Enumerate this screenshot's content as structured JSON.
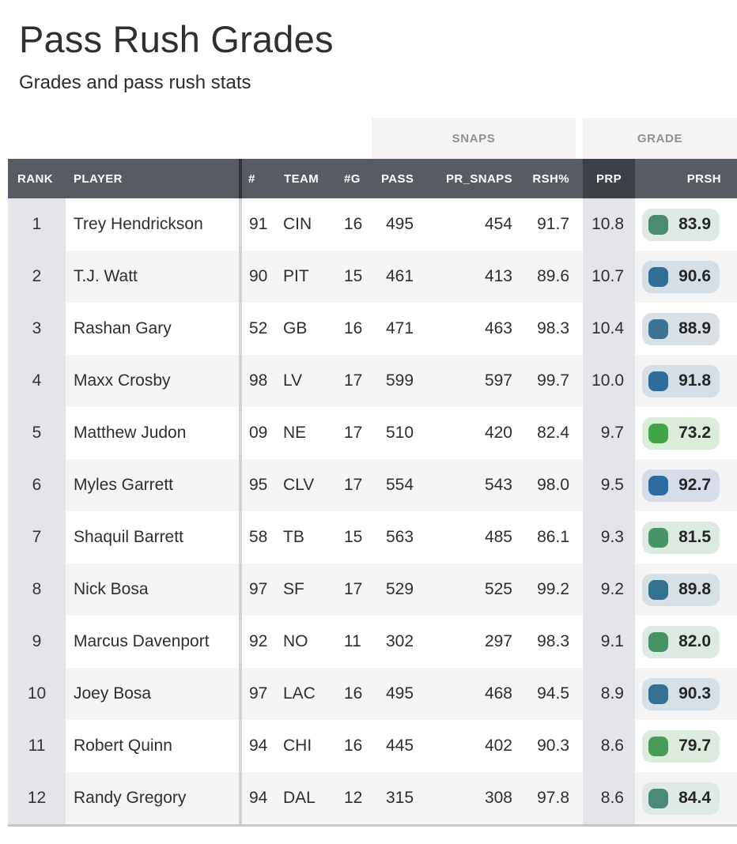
{
  "page": {
    "title": "Pass Rush Grades",
    "subtitle": "Grades and pass rush stats"
  },
  "table": {
    "groups": [
      {
        "label": "SNAPS"
      },
      {
        "label": "GRADE"
      }
    ],
    "columns": [
      {
        "key": "rank",
        "label": "RANK"
      },
      {
        "key": "player",
        "label": "PLAYER"
      },
      {
        "key": "num",
        "label": "#"
      },
      {
        "key": "team",
        "label": "TEAM"
      },
      {
        "key": "games",
        "label": "#G"
      },
      {
        "key": "pass",
        "label": "PASS"
      },
      {
        "key": "pr_snaps",
        "label": "PR_SNAPS"
      },
      {
        "key": "rsh_pct",
        "label": "RSH%"
      },
      {
        "key": "prp",
        "label": "PRP"
      },
      {
        "key": "prsh",
        "label": "PRSH"
      }
    ],
    "rows": [
      {
        "rank": "1",
        "player": "Trey Hendrickson",
        "num": "91",
        "team": "CIN",
        "games": "16",
        "pass": "495",
        "pr_snaps": "454",
        "rsh_pct": "91.7",
        "prp": "10.8",
        "prsh": {
          "value": "83.9",
          "icon_color": "#4a8a6e",
          "bg_color": "#dfe9e3"
        }
      },
      {
        "rank": "2",
        "player": "T.J. Watt",
        "num": "90",
        "team": "PIT",
        "games": "15",
        "pass": "461",
        "pr_snaps": "413",
        "rsh_pct": "89.6",
        "prp": "10.7",
        "prsh": {
          "value": "90.6",
          "icon_color": "#336e94",
          "bg_color": "#d7dfe6"
        }
      },
      {
        "rank": "3",
        "player": "Rashan Gary",
        "num": "52",
        "team": "GB",
        "games": "16",
        "pass": "471",
        "pr_snaps": "463",
        "rsh_pct": "98.3",
        "prp": "10.4",
        "prsh": {
          "value": "88.9",
          "icon_color": "#3c7591",
          "bg_color": "#d9e1e6"
        }
      },
      {
        "rank": "4",
        "player": "Maxx Crosby",
        "num": "98",
        "team": "LV",
        "games": "17",
        "pass": "599",
        "pr_snaps": "597",
        "rsh_pct": "99.7",
        "prp": "10.0",
        "prsh": {
          "value": "91.8",
          "icon_color": "#2f6c9c",
          "bg_color": "#d6dee7"
        }
      },
      {
        "rank": "5",
        "player": "Matthew Judon",
        "num": "09",
        "team": "NE",
        "games": "17",
        "pass": "510",
        "pr_snaps": "420",
        "rsh_pct": "82.4",
        "prp": "9.7",
        "prsh": {
          "value": "73.2",
          "icon_color": "#41a447",
          "bg_color": "#d9edd9"
        }
      },
      {
        "rank": "6",
        "player": "Myles Garrett",
        "num": "95",
        "team": "CLV",
        "games": "17",
        "pass": "554",
        "pr_snaps": "543",
        "rsh_pct": "98.0",
        "prp": "9.5",
        "prsh": {
          "value": "92.7",
          "icon_color": "#2d6ba1",
          "bg_color": "#d6dde8"
        }
      },
      {
        "rank": "7",
        "player": "Shaquil Barrett",
        "num": "58",
        "team": "TB",
        "games": "15",
        "pass": "563",
        "pr_snaps": "485",
        "rsh_pct": "86.1",
        "prp": "9.3",
        "prsh": {
          "value": "81.5",
          "icon_color": "#479467",
          "bg_color": "#ddeae2"
        }
      },
      {
        "rank": "8",
        "player": "Nick Bosa",
        "num": "97",
        "team": "SF",
        "games": "17",
        "pass": "529",
        "pr_snaps": "525",
        "rsh_pct": "99.2",
        "prp": "9.2",
        "prsh": {
          "value": "89.8",
          "icon_color": "#34708f",
          "bg_color": "#d7e0e5"
        }
      },
      {
        "rank": "9",
        "player": "Marcus Davenport",
        "num": "92",
        "team": "NO",
        "games": "11",
        "pass": "302",
        "pr_snaps": "297",
        "rsh_pct": "98.3",
        "prp": "9.1",
        "prsh": {
          "value": "82.0",
          "icon_color": "#489164",
          "bg_color": "#ddeae1"
        }
      },
      {
        "rank": "10",
        "player": "Joey Bosa",
        "num": "97",
        "team": "LAC",
        "games": "16",
        "pass": "495",
        "pr_snaps": "468",
        "rsh_pct": "94.5",
        "prp": "8.9",
        "prsh": {
          "value": "90.3",
          "icon_color": "#356f92",
          "bg_color": "#d7e0e6"
        }
      },
      {
        "rank": "11",
        "player": "Robert Quinn",
        "num": "94",
        "team": "CHI",
        "games": "16",
        "pass": "445",
        "pr_snaps": "402",
        "rsh_pct": "90.3",
        "prp": "8.6",
        "prsh": {
          "value": "79.7",
          "icon_color": "#4a9b58",
          "bg_color": "#dcebdd"
        }
      },
      {
        "rank": "12",
        "player": "Randy Gregory",
        "num": "94",
        "team": "DAL",
        "games": "12",
        "pass": "315",
        "pr_snaps": "308",
        "rsh_pct": "97.8",
        "prp": "8.6",
        "prsh": {
          "value": "84.4",
          "icon_color": "#4b8a78",
          "bg_color": "#dfe9e5"
        }
      }
    ]
  },
  "colors": {
    "header_bg": "#575c63",
    "prp_header_bg": "#3c4148",
    "rank_prp_cell_bg": "#e3e5e9",
    "row_stripe": "#f5f5f6",
    "group_box_bg": "#f4f4f5",
    "group_text": "#8b9197",
    "divider_header": "#2c3036",
    "divider_body": "#d2d3d6",
    "bottom_border": "#c7c8ca"
  }
}
